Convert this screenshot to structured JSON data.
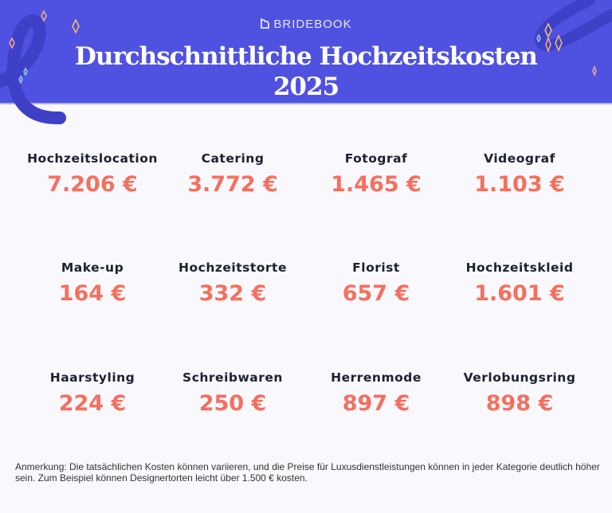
{
  "brand": "BRIDEBOOK",
  "title": "Durchschnittliche Hochzeitskosten",
  "year": "2025",
  "colors": {
    "header": "#4f52e0",
    "value": "#f66f5e",
    "label": "#1d2030"
  },
  "items": [
    {
      "label": "Hochzeitslocation",
      "value": "7.206 €"
    },
    {
      "label": "Catering",
      "value": "3.772 €"
    },
    {
      "label": "Fotograf",
      "value": "1.465 €"
    },
    {
      "label": "Videograf",
      "value": "1.103 €"
    },
    {
      "label": "Make-up",
      "value": "164 €"
    },
    {
      "label": "Hochzeitstorte",
      "value": "332 €"
    },
    {
      "label": "Florist",
      "value": "657 €"
    },
    {
      "label": "Hochzeitskleid",
      "value": "1.601 €"
    },
    {
      "label": "Haarstyling",
      "value": "224 €"
    },
    {
      "label": "Schreibwaren",
      "value": "250 €"
    },
    {
      "label": "Herrenmode",
      "value": "897 €"
    },
    {
      "label": "Verlobungsring",
      "value": "898 €"
    }
  ],
  "note": "Anmerkung: Die tatsächlichen Kosten können variieren, und die Preise für Luxusdienstleistungen können in jeder Kategorie deutlich höher sein. Zum Beispiel können Designertorten leicht über 1.500 € kosten."
}
